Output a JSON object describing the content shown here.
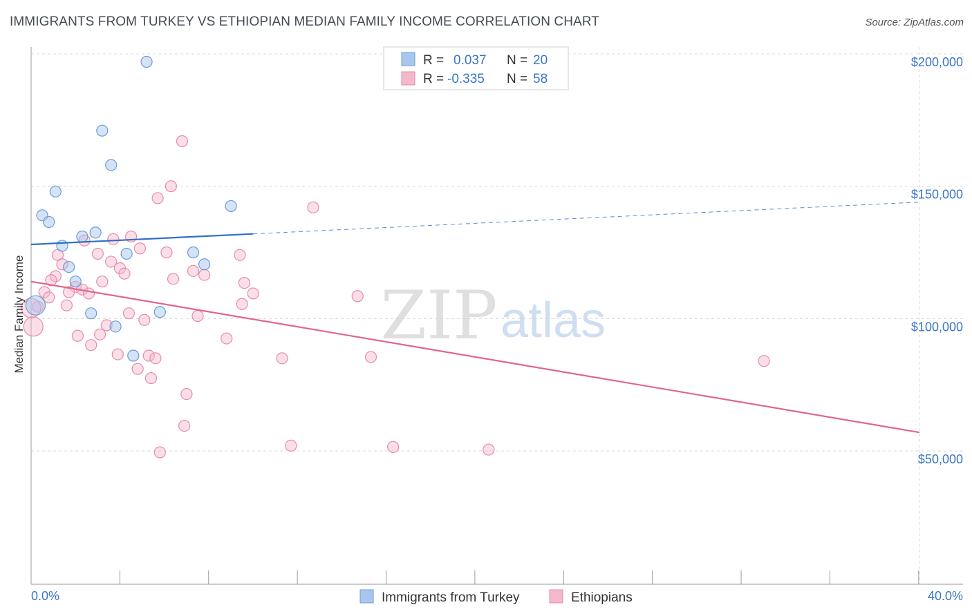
{
  "title": "IMMIGRANTS FROM TURKEY VS ETHIOPIAN MEDIAN FAMILY INCOME CORRELATION CHART",
  "source": "Source: ZipAtlas.com",
  "watermark": {
    "zip": "ZIP",
    "atlas": "atlas"
  },
  "colors": {
    "blue_fill": "#a9c7ee",
    "blue_stroke": "#6b9bd8",
    "blue_line": "#2f6fc4",
    "pink_fill": "#f5b8cb",
    "pink_stroke": "#e98aa8",
    "pink_line": "#e06590",
    "axis_text": "#3a76c7",
    "grid": "#d8d8d8"
  },
  "legend": {
    "rows": [
      {
        "r_label": "R =",
        "r_value": "0.037",
        "n_label": "N =",
        "n_value": "20",
        "series": "blue"
      },
      {
        "r_label": "R =",
        "r_value": "-0.335",
        "n_label": "N =",
        "n_value": "58",
        "series": "pink"
      }
    ]
  },
  "chart_data": {
    "type": "scatter",
    "title": "IMMIGRANTS FROM TURKEY VS ETHIOPIAN MEDIAN FAMILY INCOME CORRELATION CHART",
    "xlabel": "",
    "ylabel": "Median Family Income",
    "xlim": [
      0,
      40
    ],
    "ylim": [
      0,
      210000
    ],
    "x_tick_labels": [
      "0.0%",
      "40.0%"
    ],
    "y_ticks": [
      50000,
      100000,
      150000,
      200000
    ],
    "y_tick_labels": [
      "$50,000",
      "$100,000",
      "$150,000",
      "$200,000"
    ],
    "series": [
      {
        "name": "Immigrants from Turkey",
        "color": "blue",
        "points": [
          [
            5.2,
            197000
          ],
          [
            3.2,
            171000
          ],
          [
            3.6,
            158000
          ],
          [
            1.1,
            148000
          ],
          [
            0.5,
            139000
          ],
          [
            0.8,
            136500
          ],
          [
            9.0,
            142500
          ],
          [
            1.4,
            127500
          ],
          [
            2.3,
            131000
          ],
          [
            2.9,
            132500
          ],
          [
            4.3,
            124500
          ],
          [
            7.3,
            125000
          ],
          [
            7.8,
            120500
          ],
          [
            1.7,
            119500
          ],
          [
            2.0,
            114000
          ],
          [
            0.2,
            105000
          ],
          [
            2.7,
            102000
          ],
          [
            5.8,
            102500
          ],
          [
            3.8,
            97000
          ],
          [
            4.6,
            86000
          ]
        ],
        "trend": {
          "x0": 0,
          "y0": 128000,
          "x1": 10,
          "y1": 132000,
          "dashed_to": 40,
          "y_dashed_end": 144000
        }
      },
      {
        "name": "Ethiopians",
        "color": "pink",
        "points": [
          [
            6.8,
            167000
          ],
          [
            6.3,
            150000
          ],
          [
            5.7,
            145500
          ],
          [
            12.7,
            142000
          ],
          [
            4.5,
            131000
          ],
          [
            2.4,
            129500
          ],
          [
            3.7,
            130000
          ],
          [
            4.9,
            126500
          ],
          [
            6.1,
            125000
          ],
          [
            9.4,
            124000
          ],
          [
            1.2,
            124000
          ],
          [
            3.0,
            124500
          ],
          [
            3.6,
            121500
          ],
          [
            1.4,
            120500
          ],
          [
            4.0,
            119000
          ],
          [
            7.3,
            118000
          ],
          [
            7.8,
            116500
          ],
          [
            4.2,
            117000
          ],
          [
            1.1,
            116000
          ],
          [
            6.4,
            115000
          ],
          [
            0.9,
            114500
          ],
          [
            3.2,
            114000
          ],
          [
            9.6,
            113500
          ],
          [
            2.0,
            112000
          ],
          [
            2.3,
            111000
          ],
          [
            0.6,
            110000
          ],
          [
            1.7,
            110000
          ],
          [
            2.6,
            109500
          ],
          [
            0.8,
            108000
          ],
          [
            10.0,
            109500
          ],
          [
            14.7,
            108500
          ],
          [
            9.5,
            105500
          ],
          [
            1.6,
            105000
          ],
          [
            0.3,
            104500
          ],
          [
            4.4,
            102000
          ],
          [
            7.5,
            101000
          ],
          [
            5.1,
            99500
          ],
          [
            3.4,
            97500
          ],
          [
            0.1,
            97000
          ],
          [
            3.1,
            94000
          ],
          [
            2.1,
            93500
          ],
          [
            8.8,
            92500
          ],
          [
            2.7,
            90000
          ],
          [
            3.9,
            86500
          ],
          [
            5.3,
            86000
          ],
          [
            5.6,
            85000
          ],
          [
            11.3,
            85000
          ],
          [
            15.3,
            85500
          ],
          [
            33.0,
            84000
          ],
          [
            4.8,
            81000
          ],
          [
            5.4,
            77500
          ],
          [
            7.0,
            71500
          ],
          [
            6.9,
            59500
          ],
          [
            11.7,
            52000
          ],
          [
            16.3,
            51500
          ],
          [
            20.6,
            50500
          ],
          [
            5.8,
            49500
          ],
          [
            0.0,
            104000
          ]
        ],
        "trend": {
          "x0": 0,
          "y0": 114000,
          "x1": 40,
          "y1": 57000
        }
      }
    ]
  },
  "bottom_legend": [
    {
      "label": "Immigrants from Turkey",
      "series": "blue"
    },
    {
      "label": "Ethiopians",
      "series": "pink"
    }
  ]
}
